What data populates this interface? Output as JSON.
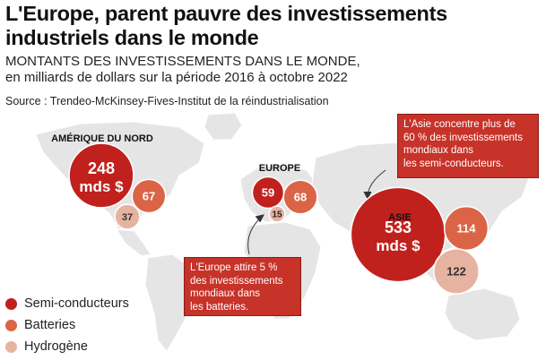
{
  "title_line1": "L'Europe, parent pauvre des investissements",
  "title_line2": "industriels dans le monde",
  "subtitle_line1": "MONTANTS DES INVESTISSEMENTS DANS LE MONDE,",
  "subtitle_line2": "en milliards de dollars sur la période 2016 à octobre 2022",
  "source": "Source : Trendeo-McKinsey-Fives-Institut de la réindustrialisation",
  "legend": [
    {
      "label": "Semi-conducteurs",
      "color": "#c0211d"
    },
    {
      "label": "Batteries",
      "color": "#db6446"
    },
    {
      "label": "Hydrogène",
      "color": "#e7b3a1"
    }
  ],
  "callouts": {
    "asia": [
      "L'Asie concentre plus de",
      "60 % des investissements",
      "mondiaux dans",
      "les semi-conducteurs."
    ],
    "europe": [
      "L'Europe attire 5 %",
      "des investissements",
      "mondiaux dans",
      "les batteries."
    ]
  },
  "chart_data": {
    "type": "bubble-map",
    "unit": "milliards de dollars",
    "categories": [
      "Semi-conducteurs",
      "Batteries",
      "Hydrogène"
    ],
    "regions": [
      {
        "name": "AMÉRIQUE DU NORD",
        "values": [
          248,
          67,
          37
        ],
        "labels": [
          "248",
          "67",
          "37"
        ],
        "sublabel": "mds $"
      },
      {
        "name": "EUROPE",
        "values": [
          59,
          68,
          15
        ],
        "labels": [
          "59",
          "68",
          "15"
        ],
        "sublabel": ""
      },
      {
        "name": "ASIE",
        "values": [
          533,
          114,
          122
        ],
        "labels": [
          "533",
          "114",
          "122"
        ],
        "sublabel": "mds $"
      }
    ]
  }
}
